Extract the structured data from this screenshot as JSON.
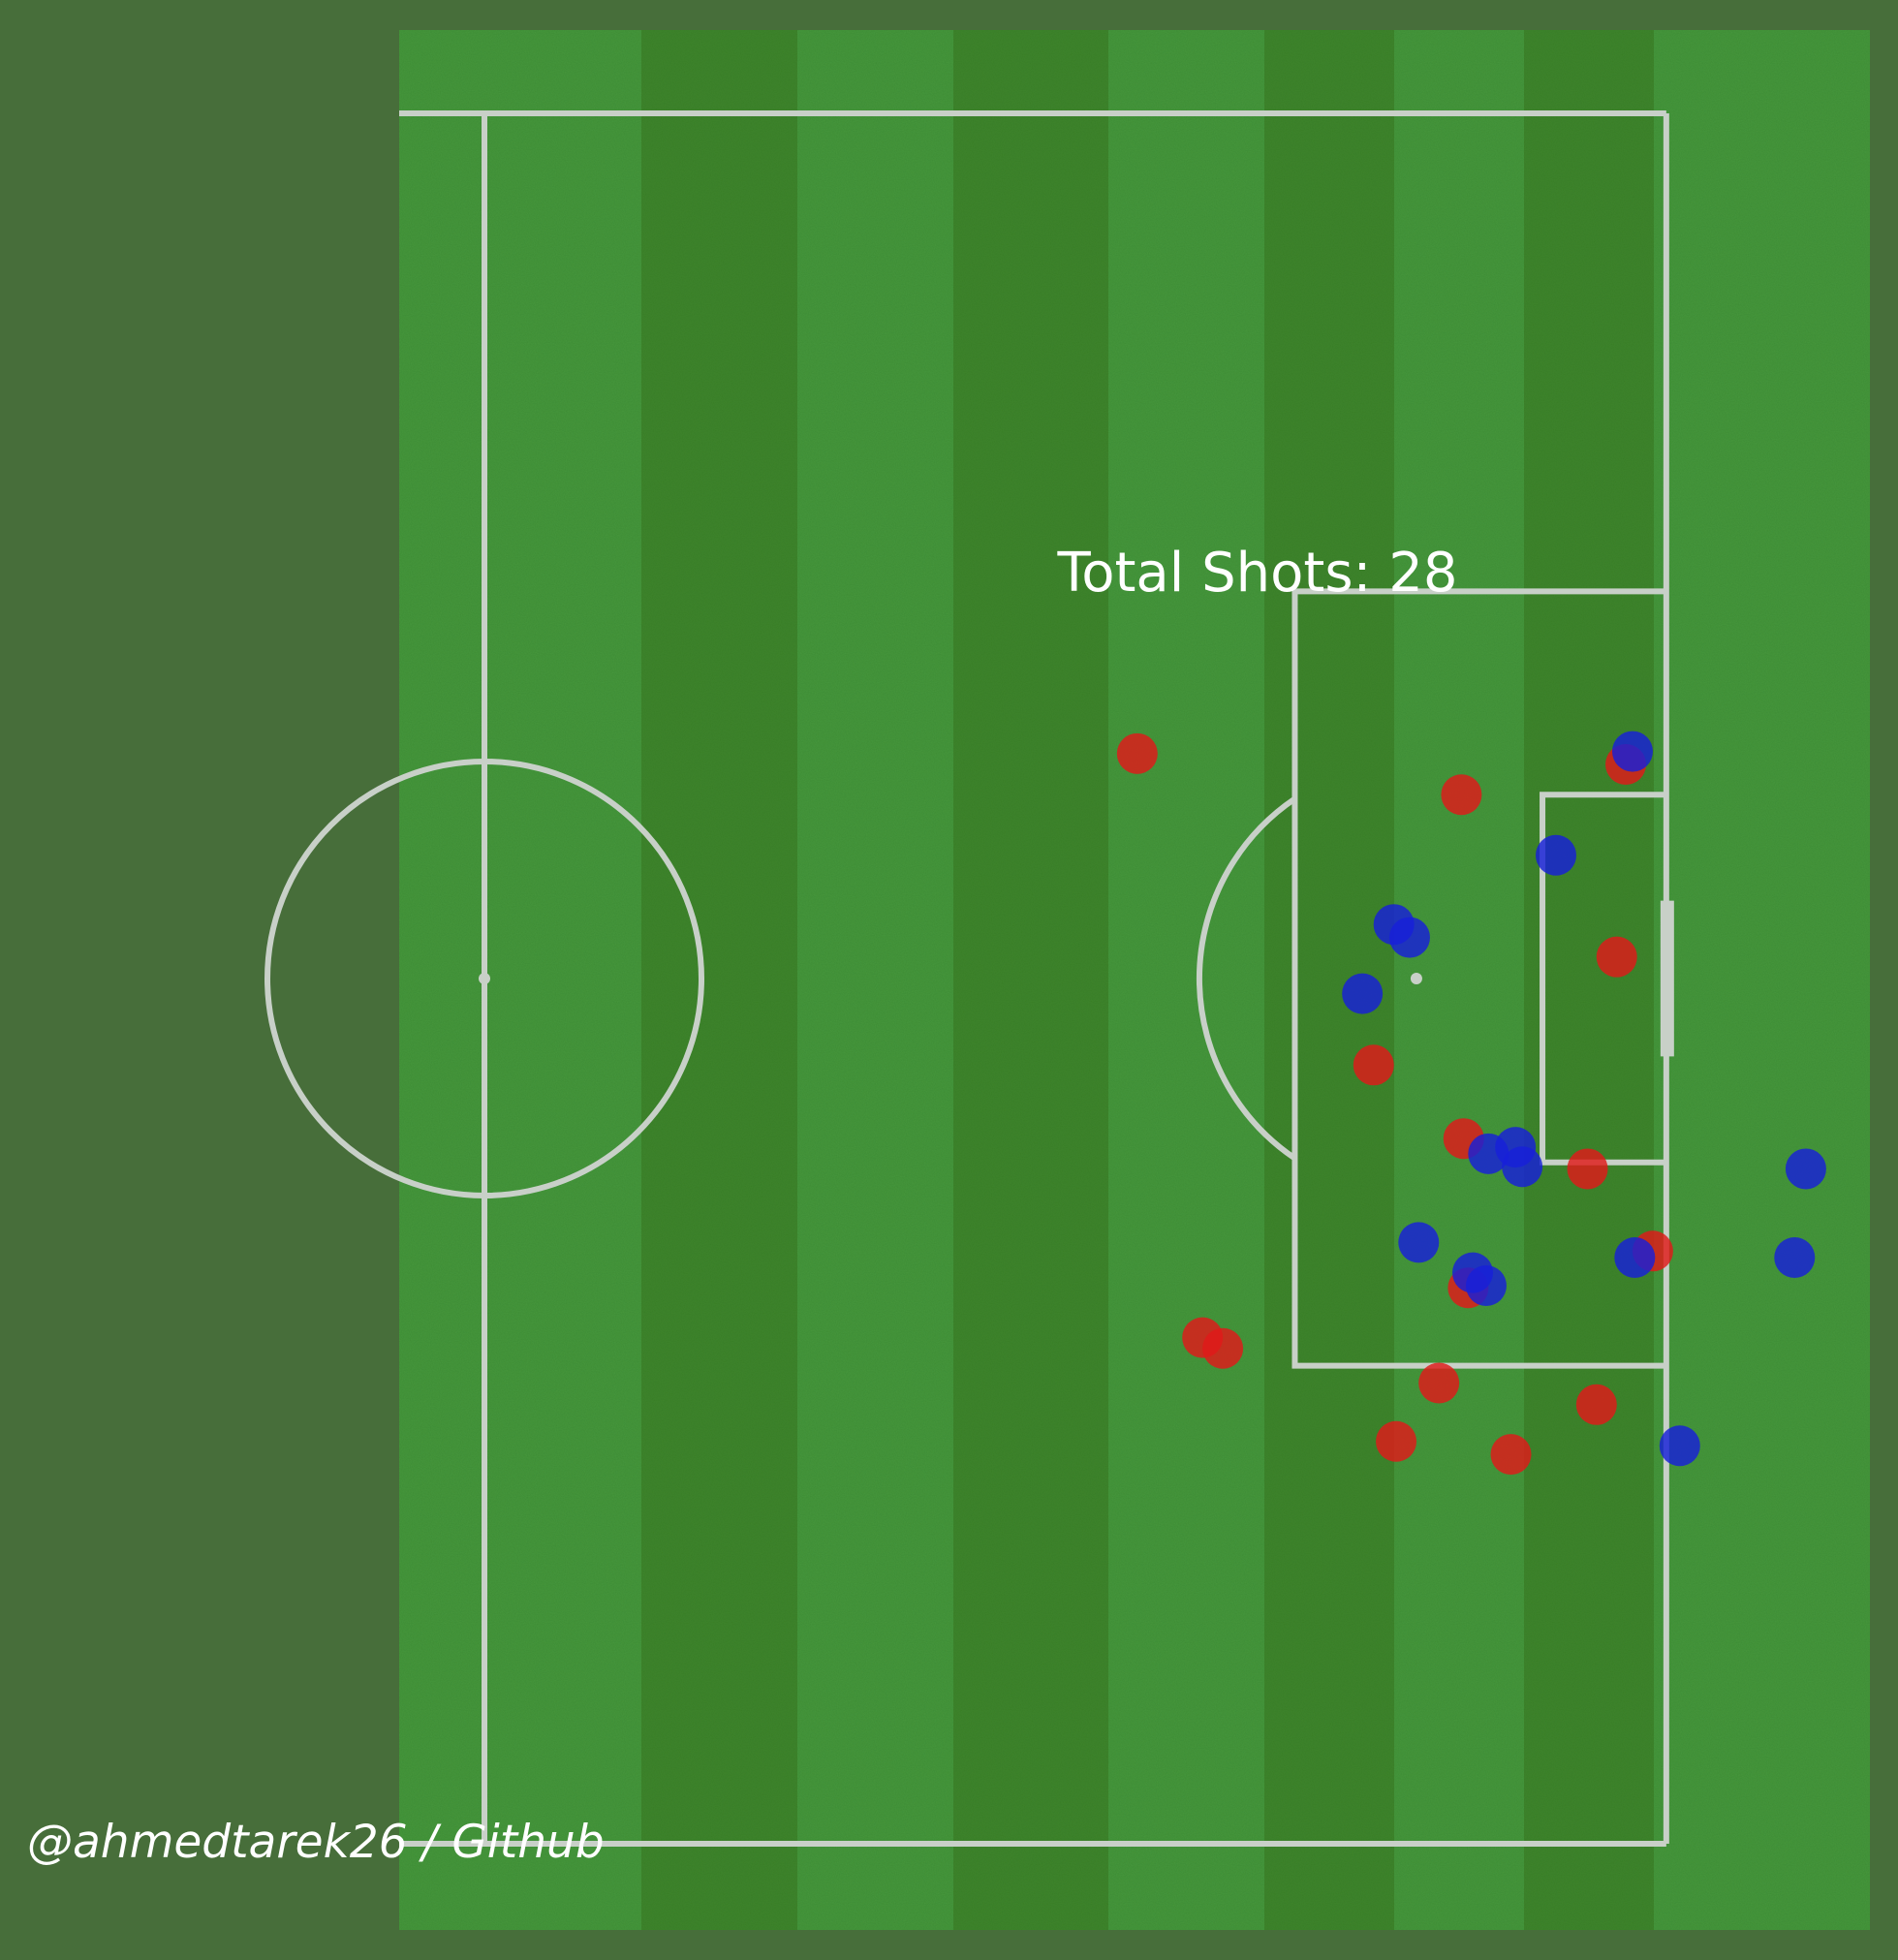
{
  "colors": {
    "figure_background": "#476e3a",
    "stripe_light": "#46973d",
    "stripe_dark": "#40852f",
    "line": "#c8d0c8",
    "text": "#ffffff",
    "team_red": "#e01a1a",
    "team_blue": "#1720d9"
  },
  "annotation": {
    "total_shots": "Total Shots: 28"
  },
  "credit": "@ahmedtarek26 / Github",
  "chart_data": {
    "type": "scatter",
    "pitch": "half pitch, attacking right",
    "x_axis": "pitch length (metres)",
    "y_axis": "pitch width (metres)",
    "xlim": [
      52.5,
      110
    ],
    "ylim": [
      0,
      80
    ],
    "series": [
      {
        "color": "#e01a1a",
        "points": [
          [
            81.5,
            50.4
          ],
          [
            84.4,
            23.4
          ],
          [
            85.3,
            22.9
          ],
          [
            92.0,
            36.0
          ],
          [
            93.0,
            18.6
          ],
          [
            94.9,
            21.3
          ],
          [
            95.9,
            48.5
          ],
          [
            96.0,
            32.6
          ],
          [
            96.2,
            25.7
          ],
          [
            98.1,
            18.0
          ],
          [
            101.5,
            31.2
          ],
          [
            101.9,
            20.3
          ],
          [
            102.8,
            41.0
          ],
          [
            103.2,
            49.9
          ],
          [
            104.4,
            27.4
          ]
        ]
      },
      {
        "color": "#1720d9",
        "points": [
          [
            91.5,
            39.3
          ],
          [
            92.9,
            42.5
          ],
          [
            93.6,
            41.9
          ],
          [
            94.0,
            27.8
          ],
          [
            96.4,
            26.4
          ],
          [
            97.0,
            25.8
          ],
          [
            97.1,
            31.9
          ],
          [
            98.3,
            32.2
          ],
          [
            98.6,
            31.3
          ],
          [
            100.1,
            45.7
          ],
          [
            103.5,
            50.5
          ],
          [
            103.6,
            27.1
          ],
          [
            105.6,
            18.4
          ],
          [
            110.7,
            27.1
          ],
          [
            111.2,
            31.2
          ]
        ]
      }
    ]
  }
}
